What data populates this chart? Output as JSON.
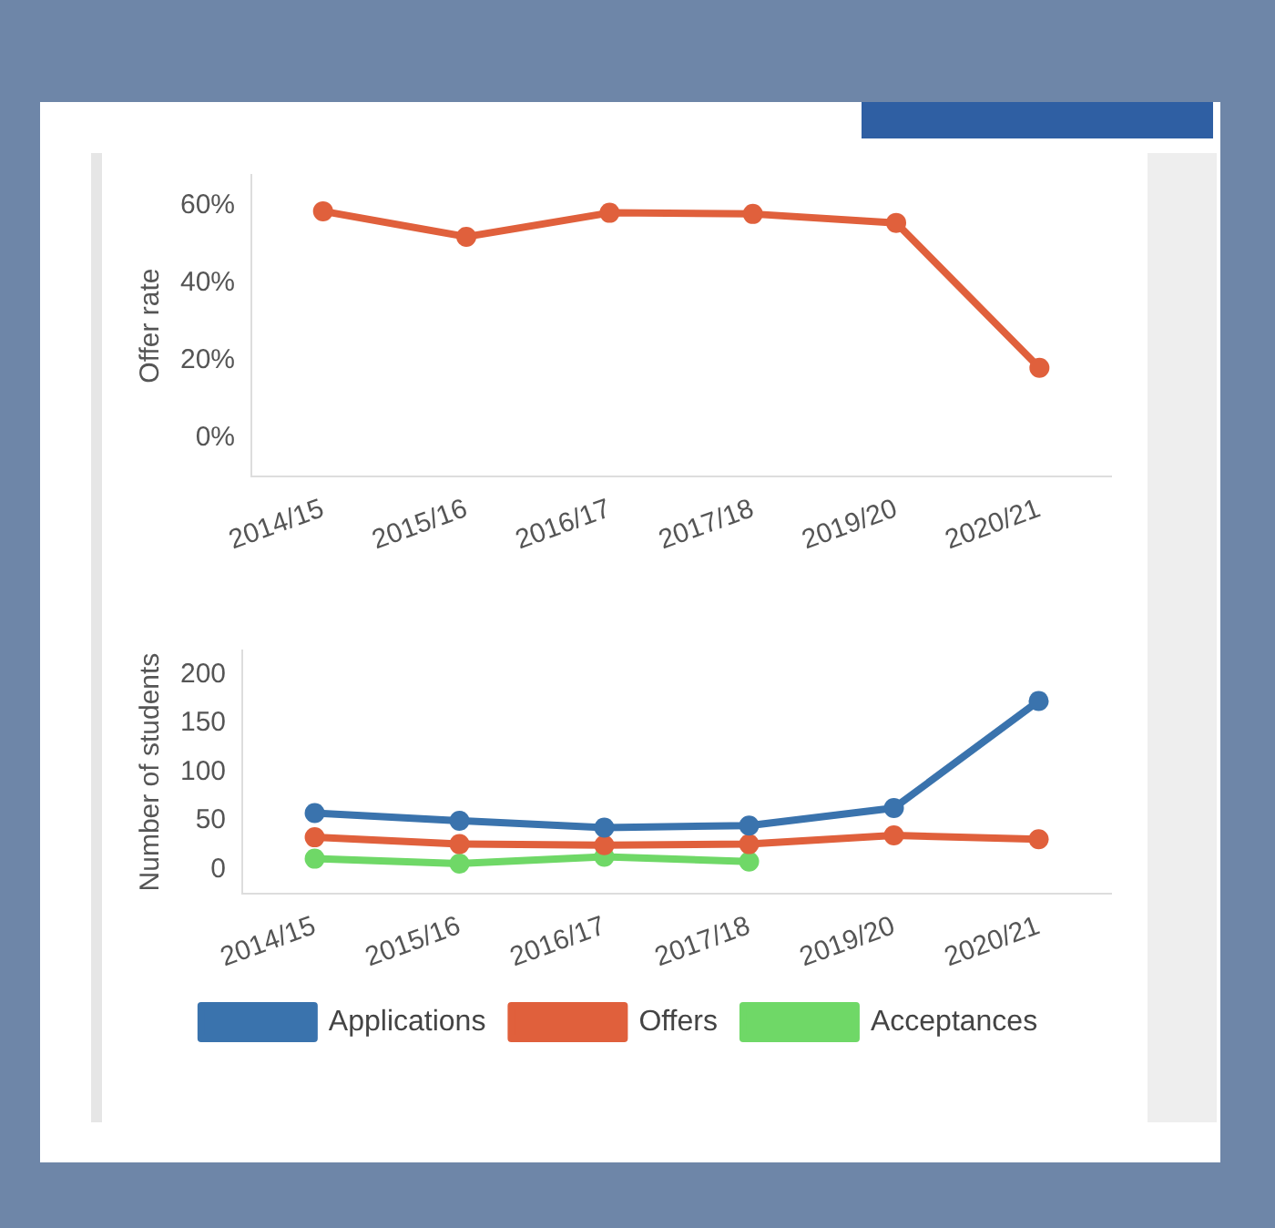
{
  "chart_data": [
    {
      "type": "line",
      "ylabel": "Offer rate",
      "categories": [
        "2014/15",
        "2015/16",
        "2016/17",
        "2017/18",
        "2019/20",
        "2020/21"
      ],
      "series": [
        {
          "color": "#e0603c",
          "values": [
            58.6,
            52,
            58.2,
            57.9,
            55.6,
            18.1
          ]
        }
      ],
      "ylim": [
        -10,
        68
      ],
      "yticks": [
        {
          "value": 0,
          "label": "0%"
        },
        {
          "value": 20,
          "label": "20%"
        },
        {
          "value": 40,
          "label": "40%"
        },
        {
          "value": 60,
          "label": "60%"
        }
      ],
      "grid": false,
      "legend": false,
      "marker": "circle",
      "line_style": "solid"
    },
    {
      "type": "line",
      "ylabel": "Number of students",
      "categories": [
        "2014/15",
        "2015/16",
        "2016/17",
        "2017/18",
        "2019/20",
        "2020/21"
      ],
      "series": [
        {
          "name": "Applications",
          "color": "#3a73ad",
          "values": [
            58,
            50,
            43,
            45,
            63,
            173
          ]
        },
        {
          "name": "Offers",
          "color": "#e0603c",
          "values": [
            33,
            26,
            25,
            26,
            35,
            31
          ]
        },
        {
          "name": "Acceptances",
          "color": "#6fd867",
          "values": [
            11,
            6,
            13,
            8,
            null,
            null
          ]
        }
      ],
      "ylim": [
        -25,
        225
      ],
      "yticks": [
        0,
        50,
        100,
        150,
        200
      ],
      "grid": false,
      "legend": "bottom",
      "marker": "circle",
      "line_style": "solid"
    }
  ]
}
